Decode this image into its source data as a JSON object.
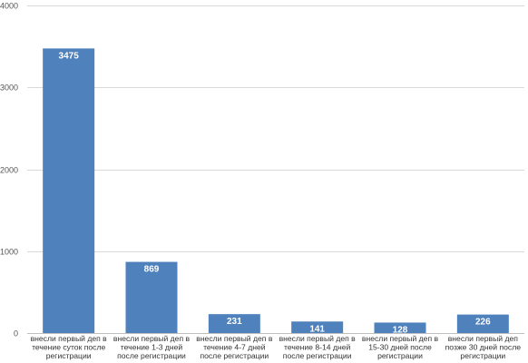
{
  "chart_data": {
    "type": "bar",
    "categories": [
      [
        "внесли первый деп в",
        "течение суток после",
        "регистрации"
      ],
      [
        "внесли первый деп в",
        "течение 1-3 дней",
        "после регистрации"
      ],
      [
        "внесли первый деп в",
        "течение 4-7 дней",
        "после регистрации"
      ],
      [
        "внесли первый деп в",
        "течение 8-14 дней",
        "после регистрации"
      ],
      [
        "внесли первый деп в",
        "15-30 дней после",
        "регистрации"
      ],
      [
        "внесли первый деп",
        "позже 30 дней после",
        "регистрации"
      ]
    ],
    "values": [
      3475,
      869,
      231,
      141,
      128,
      226
    ],
    "data_labels": [
      "3475",
      "869",
      "231",
      "141",
      "128",
      "226"
    ],
    "ylim": [
      0,
      4000
    ],
    "yticks": [
      0,
      1000,
      2000,
      3000,
      4000
    ],
    "ytick_labels": [
      "0",
      "1000",
      "2000",
      "3000",
      "4000"
    ],
    "grid": true,
    "legend": "none",
    "colors": {
      "bar": "#4f81bd",
      "grid": "#d9d9d9",
      "axis": "#bfbfbf"
    }
  }
}
